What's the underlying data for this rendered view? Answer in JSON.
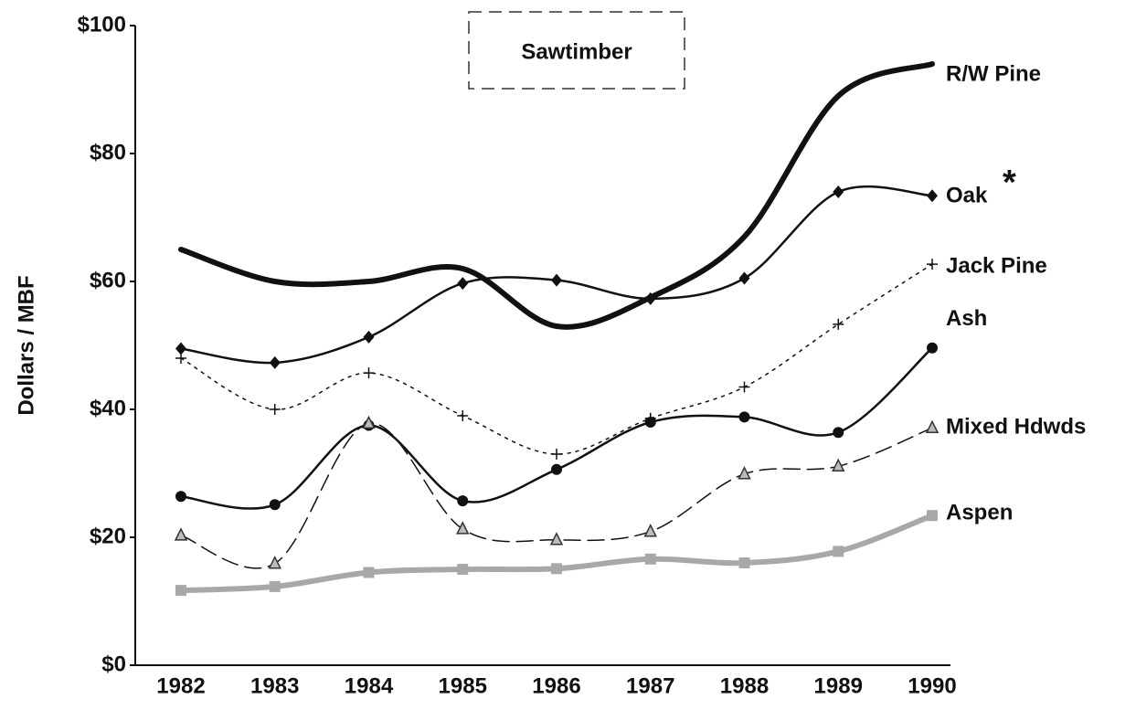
{
  "chart_data": {
    "type": "line",
    "title": "Sawtimber",
    "y_label": "Dollars / MBF",
    "categories": [
      "1982",
      "1983",
      "1984",
      "1985",
      "1986",
      "1987",
      "1988",
      "1989",
      "1990"
    ],
    "ylim": [
      0,
      100
    ],
    "yticks": [
      {
        "value": 0,
        "label": "$0"
      },
      {
        "value": 20,
        "label": "$20"
      },
      {
        "value": 40,
        "label": "$40"
      },
      {
        "value": 60,
        "label": "$60"
      },
      {
        "value": 80,
        "label": "$80"
      },
      {
        "value": 100,
        "label": "$100"
      }
    ],
    "grid": false,
    "annotation": "*",
    "series": [
      {
        "name": "R/W Pine",
        "color": "#111111",
        "marker": "none",
        "line": "thick",
        "values": [
          65,
          60,
          60,
          62,
          53,
          57.5,
          67,
          89,
          94
        ]
      },
      {
        "name": "Oak",
        "color": "#111111",
        "marker": "diamond",
        "line": "solid",
        "values": [
          49.5,
          47.3,
          51.3,
          59.7,
          60.2,
          57.3,
          60.5,
          74,
          73.4
        ]
      },
      {
        "name": "Jack Pine",
        "color": "#111111",
        "marker": "plus",
        "line": "dotted",
        "values": [
          48,
          40,
          45.7,
          39,
          33,
          38.6,
          43.5,
          53.3,
          62.7
        ]
      },
      {
        "name": "Ash",
        "color": "#111111",
        "marker": "circle",
        "line": "solid",
        "values": [
          26.4,
          25.1,
          37.5,
          25.7,
          30.6,
          38,
          38.8,
          36.4,
          49.6
        ]
      },
      {
        "name": "Mixed Hdwds",
        "color": "#111111",
        "marker": "triangle",
        "line": "dashed",
        "values": [
          20.3,
          15.9,
          37.8,
          21.3,
          19.6,
          20.9,
          29.9,
          31.1,
          37.1
        ]
      },
      {
        "name": "Aspen",
        "color": "#a8a8a8",
        "marker": "square",
        "line": "thick",
        "values": [
          11.7,
          12.3,
          14.5,
          15,
          15.1,
          16.6,
          16,
          17.8,
          23.4
        ]
      }
    ]
  }
}
